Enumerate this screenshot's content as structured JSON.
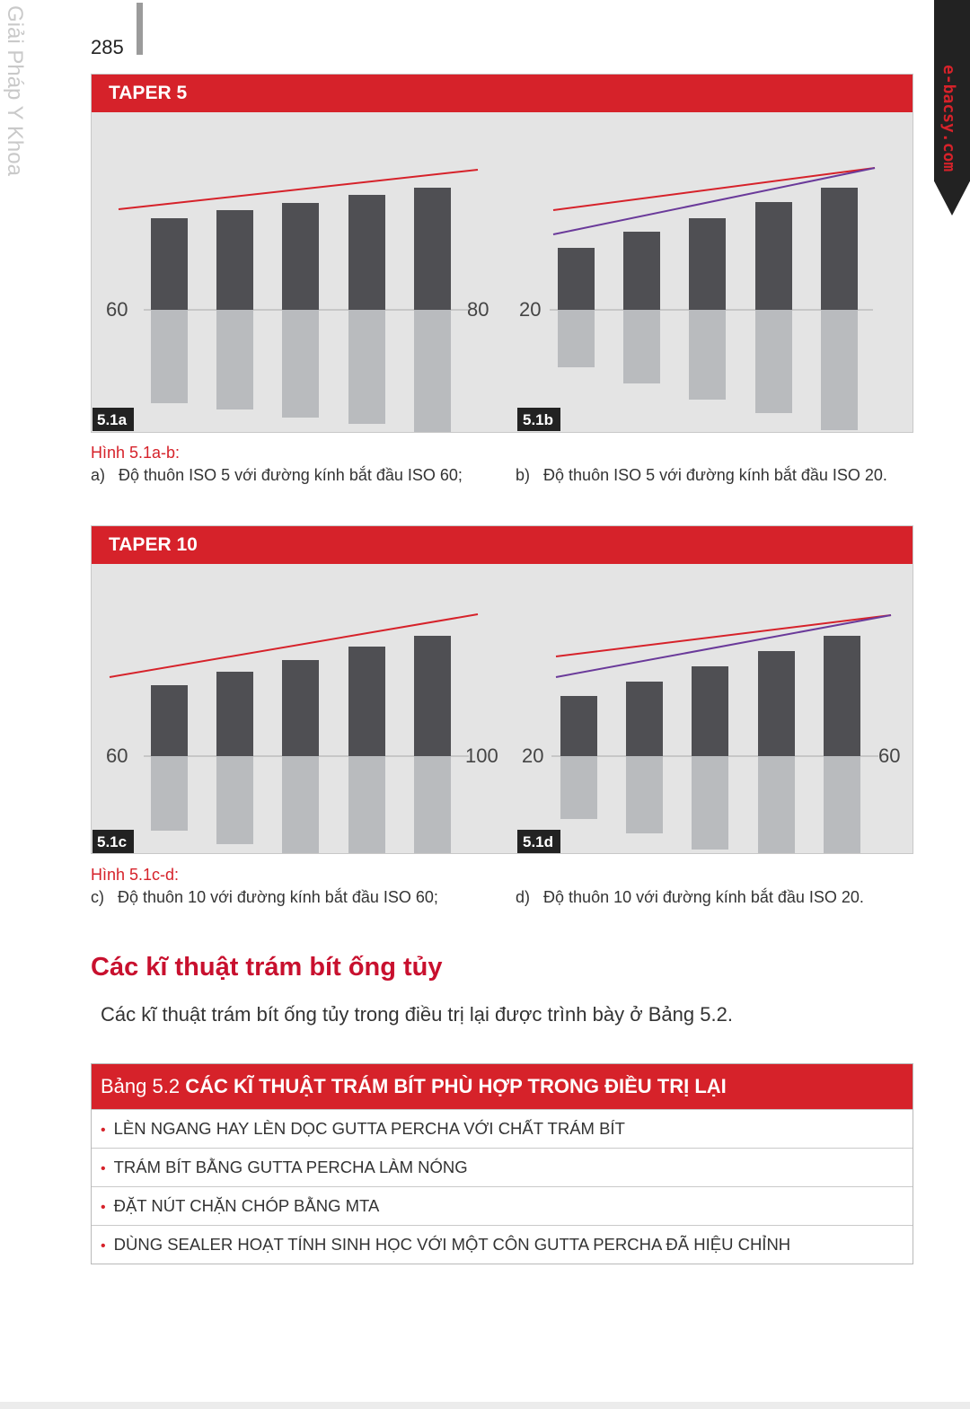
{
  "margin_title": "Giải Pháp Y Khoa",
  "page_number": "285",
  "brand": "e-bacsy.com",
  "figures": [
    {
      "header": "TAPER 5",
      "panels": [
        {
          "tag": "5.1a",
          "left_label": "60",
          "right_label": "80"
        },
        {
          "tag": "5.1b",
          "left_label": "20",
          "right_label": ""
        }
      ]
    },
    {
      "header": "TAPER 10",
      "panels": [
        {
          "tag": "5.1c",
          "left_label": "60",
          "right_label": "100"
        },
        {
          "tag": "5.1d",
          "left_label": "20",
          "right_label": "60"
        }
      ]
    }
  ],
  "captions": [
    {
      "title": "Hình 5.1a-b:",
      "a_marker": "a)",
      "a_text": "Độ thuôn ISO 5 với đường kính bắt đầu ISO 60;",
      "b_marker": "b)",
      "b_text": "Độ thuôn ISO 5 với đường kính bắt đầu ISO 20."
    },
    {
      "title": "Hình 5.1c-d:",
      "a_marker": "c)",
      "a_text": "Độ thuôn 10 với đường kính bắt đầu ISO 60;",
      "b_marker": "d)",
      "b_text": "Độ thuôn 10 với đường kính bắt đầu ISO 20."
    }
  ],
  "section_title": "Các kĩ thuật trám bít ống tủy",
  "section_text": "Các kĩ thuật trám bít ống tủy trong điều trị lại được trình bày ở Bảng 5.2.",
  "table": {
    "prefix": "Bảng 5.2",
    "title": "CÁC KĨ THUẬT TRÁM BÍT PHÙ HỢP TRONG ĐIỀU TRỊ LẠI",
    "rows": [
      "LÈN NGANG HAY LÈN DỌC GUTTA PERCHA VỚI CHẤT TRÁM BÍT",
      "TRÁM BÍT BẰNG GUTTA PERCHA LÀM NÓNG",
      "ĐẶT NÚT CHẶN CHÓP BẰNG MTA",
      "DÙNG SEALER HOẠT TÍNH SINH HỌC VỚI MỘT CÔN GUTTA PERCHA ĐÃ HIỆU CHỈNH"
    ]
  },
  "colors": {
    "accent": "#d6222a",
    "bar_dark": "#4f4f53",
    "bar_light": "#b9bbbe",
    "line_red": "#d6222a",
    "line_purple": "#6a3a9a"
  }
}
